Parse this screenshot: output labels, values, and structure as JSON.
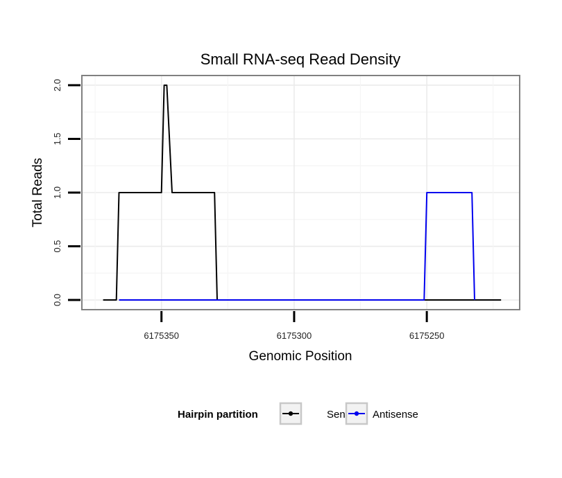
{
  "chart_data": {
    "type": "line",
    "title": "Small RNA-seq Read Density",
    "xlabel": "Genomic Position",
    "ylabel": "Total Reads",
    "x_reversed": true,
    "xlim": [
      6175380,
      6175215
    ],
    "ylim": [
      -0.09,
      2.09
    ],
    "x_ticks": [
      6175350,
      6175300,
      6175250
    ],
    "x_tick_labels": [
      "6175350",
      "6175300",
      "6175250"
    ],
    "y_ticks": [
      0.0,
      0.5,
      1.0,
      1.5,
      2.0
    ],
    "y_tick_labels": [
      "0.0",
      "0.5",
      "1.0",
      "1.5",
      "2.0"
    ],
    "grid": true,
    "legend": {
      "title": "Hairpin partition",
      "position": "bottom",
      "entries": [
        "Sense",
        "Antisense"
      ]
    },
    "series": [
      {
        "name": "Sense",
        "color": "#000000",
        "x": [
          6175372,
          6175367,
          6175366,
          6175350,
          6175349,
          6175348,
          6175346,
          6175345,
          6175330,
          6175329,
          6175315,
          6175251,
          6175240,
          6175222
        ],
        "y": [
          0,
          0,
          1,
          1,
          2,
          2,
          1,
          1,
          1,
          0,
          0,
          0,
          0,
          0
        ]
      },
      {
        "name": "Antisense",
        "color": "#0000ee",
        "x": [
          6175366,
          6175355,
          6175329,
          6175251,
          6175250,
          6175233,
          6175232
        ],
        "y": [
          0,
          0,
          0,
          0,
          1,
          1,
          0
        ]
      }
    ]
  }
}
